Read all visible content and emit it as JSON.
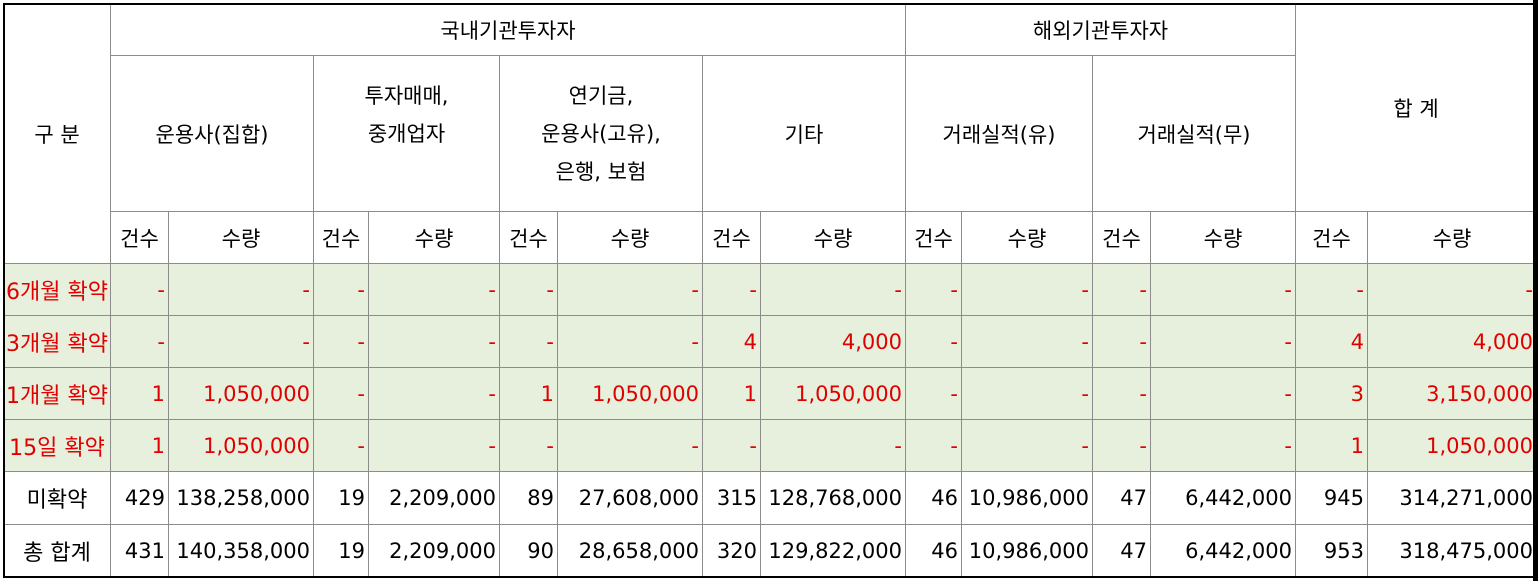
{
  "header": {
    "category": "구 분",
    "domestic": "국내기관투자자",
    "foreign": "해외기관투자자",
    "total": "합 계",
    "groups": {
      "asset_mgmt": "운용사(집합)",
      "broker_line1": "투자매매,",
      "broker_line2": "중개업자",
      "pension_line1": "연기금,",
      "pension_line2": "운용사(고유),",
      "pension_line3": "은행, 보험",
      "other": "기타",
      "foreign_with": "거래실적(유)",
      "foreign_without": "거래실적(무)"
    },
    "count_label": "건수",
    "qty_label": "수량"
  },
  "rows": [
    {
      "label": "6개월 확약",
      "cells": [
        "-",
        "-",
        "-",
        "-",
        "-",
        "-",
        "-",
        "-",
        "-",
        "-",
        "-",
        "-",
        "-",
        "-"
      ]
    },
    {
      "label": "3개월 확약",
      "cells": [
        "-",
        "-",
        "-",
        "-",
        "-",
        "-",
        "4",
        "4,000",
        "-",
        "-",
        "-",
        "-",
        "4",
        "4,000"
      ]
    },
    {
      "label": "1개월 확약",
      "cells": [
        "1",
        "1,050,000",
        "-",
        "-",
        "1",
        "1,050,000",
        "1",
        "1,050,000",
        "-",
        "-",
        "-",
        "-",
        "3",
        "3,150,000"
      ]
    },
    {
      "label": "15일 확약",
      "cells": [
        "1",
        "1,050,000",
        "-",
        "-",
        "-",
        "-",
        "-",
        "-",
        "-",
        "-",
        "-",
        "-",
        "1",
        "1,050,000"
      ]
    },
    {
      "label": "미확약",
      "cells": [
        "429",
        "138,258,000",
        "19",
        "2,209,000",
        "89",
        "27,608,000",
        "315",
        "128,768,000",
        "46",
        "10,986,000",
        "47",
        "6,442,000",
        "945",
        "314,271,000"
      ]
    },
    {
      "label": "총 합계",
      "cells": [
        "431",
        "140,358,000",
        "19",
        "2,209,000",
        "90",
        "28,658,000",
        "320",
        "129,822,000",
        "46",
        "10,986,000",
        "47",
        "6,442,000",
        "953",
        "318,475,000"
      ]
    }
  ]
}
